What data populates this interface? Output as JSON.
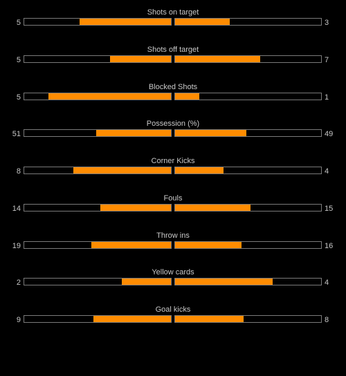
{
  "stats": [
    {
      "label": "Shots on target",
      "left": "5",
      "right": "3",
      "left_frac": 0.625,
      "right_frac": 0.375
    },
    {
      "label": "Shots off target",
      "left": "5",
      "right": "7",
      "left_frac": 0.4167,
      "right_frac": 0.5833
    },
    {
      "label": "Blocked Shots",
      "left": "5",
      "right": "1",
      "left_frac": 0.8333,
      "right_frac": 0.1667
    },
    {
      "label": "Possession (%)",
      "left": "51",
      "right": "49",
      "left_frac": 0.51,
      "right_frac": 0.49
    },
    {
      "label": "Corner Kicks",
      "left": "8",
      "right": "4",
      "left_frac": 0.6667,
      "right_frac": 0.3333
    },
    {
      "label": "Fouls",
      "left": "14",
      "right": "15",
      "left_frac": 0.4828,
      "right_frac": 0.5172
    },
    {
      "label": "Throw ins",
      "left": "19",
      "right": "16",
      "left_frac": 0.5429,
      "right_frac": 0.4571
    },
    {
      "label": "Yellow cards",
      "left": "2",
      "right": "4",
      "left_frac": 0.3333,
      "right_frac": 0.6667
    },
    {
      "label": "Goal kicks",
      "left": "9",
      "right": "8",
      "left_frac": 0.5294,
      "right_frac": 0.4706
    }
  ],
  "colors": {
    "fill": "#ff8c00",
    "border": "#7a7a7a",
    "background": "#000000"
  }
}
